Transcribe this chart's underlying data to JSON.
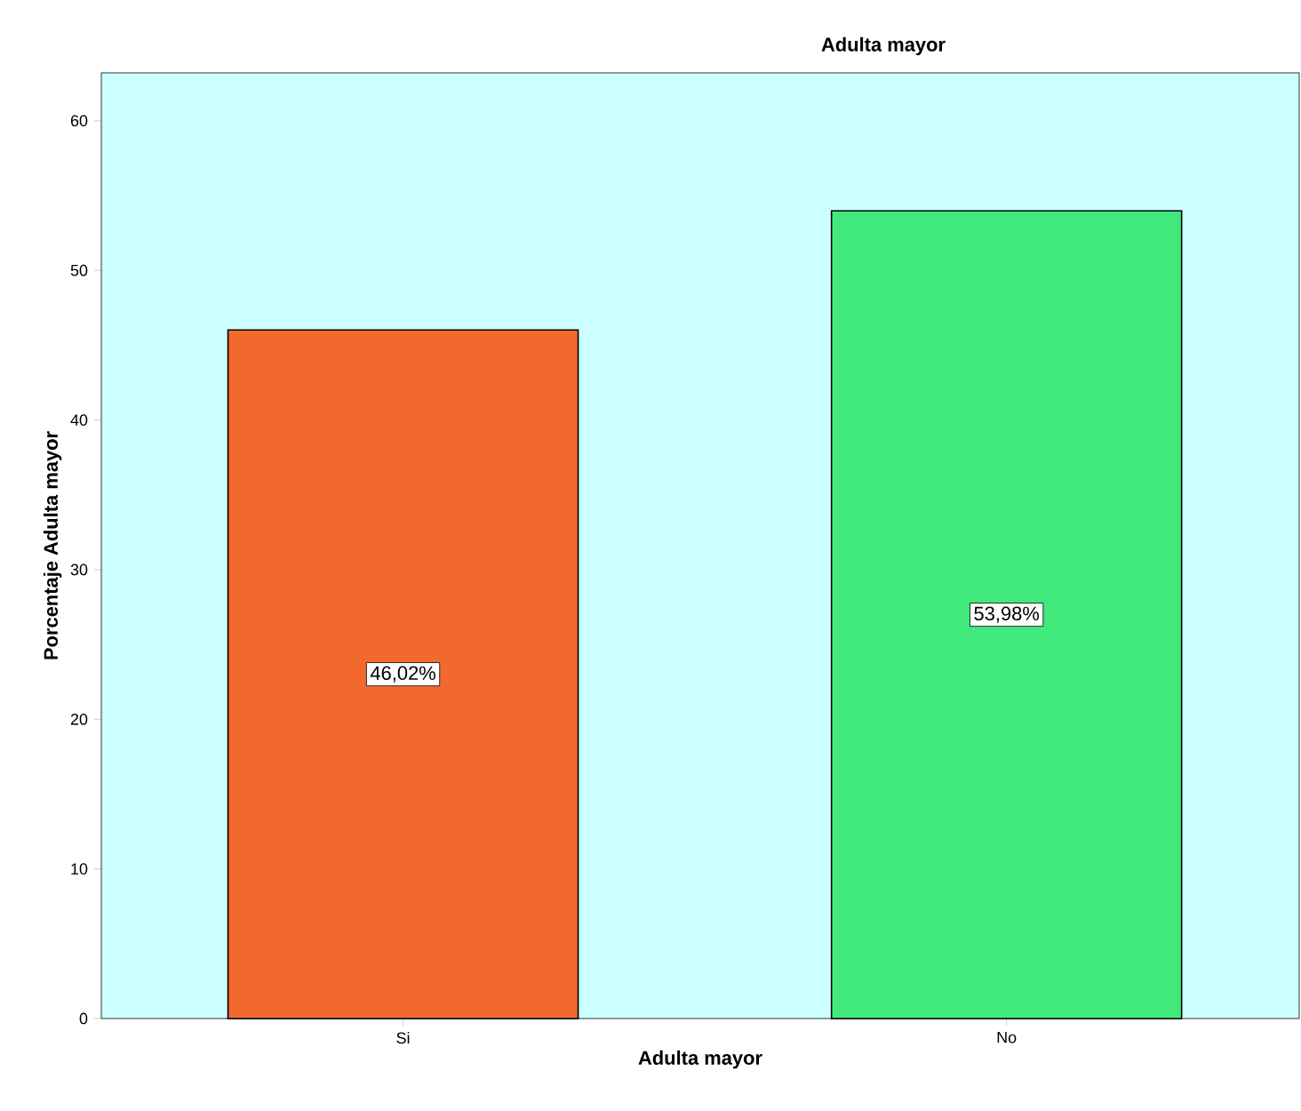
{
  "chart_data": {
    "type": "bar",
    "title": "Adulta mayor",
    "xlabel": "Adulta mayor",
    "ylabel": "Porcentaje Adulta mayor",
    "categories": [
      "Si",
      "No"
    ],
    "values": [
      46.02,
      53.98
    ],
    "colors": [
      "#f2692e",
      "#41e97d"
    ],
    "value_labels": [
      "46,02%",
      "53,98%"
    ],
    "ylim": [
      0,
      63.2
    ],
    "yticks": [
      0,
      10,
      20,
      30,
      40,
      50,
      60
    ],
    "grid": false
  }
}
